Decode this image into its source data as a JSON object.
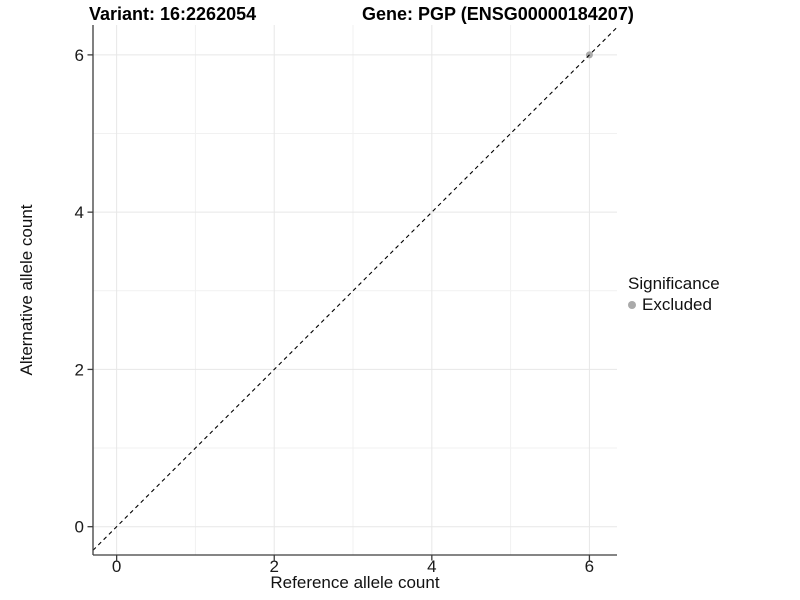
{
  "chart_data": {
    "type": "scatter",
    "titles": {
      "variant": "Variant: 16:2262054",
      "gene": "Gene: PGP (ENSG00000184207)"
    },
    "xlabel": "Reference allele count",
    "ylabel": "Alternative allele count",
    "xlim": [
      -0.3,
      6.35
    ],
    "ylim": [
      -0.36,
      6.38
    ],
    "xticks": [
      0,
      2,
      4,
      6
    ],
    "yticks": [
      0,
      2,
      4,
      6
    ],
    "x_minor_ticks": [
      1,
      3,
      5
    ],
    "y_minor_ticks": [
      1,
      3,
      5
    ],
    "grid": "on",
    "series": [
      {
        "name": "Excluded",
        "color": "#aaaaaa",
        "marker": "circle",
        "marker_radius": 3.5,
        "points": [
          [
            6,
            6
          ]
        ]
      }
    ],
    "reference_line": {
      "kind": "identity",
      "from": [
        -0.3,
        -0.3
      ],
      "to": [
        6.35,
        6.35
      ],
      "style": "dashed",
      "color": "#000000"
    },
    "legend": {
      "title": "Significance",
      "position": "right",
      "items": [
        {
          "label": "Excluded",
          "color": "#aaaaaa"
        }
      ]
    },
    "style_colors": {
      "background": "#ffffff",
      "grid_major": "#e7e7e7",
      "grid_minor": "#f1f1f1",
      "axis_line": "#3c3c3c",
      "tick_text": "#1a1a1a"
    }
  }
}
